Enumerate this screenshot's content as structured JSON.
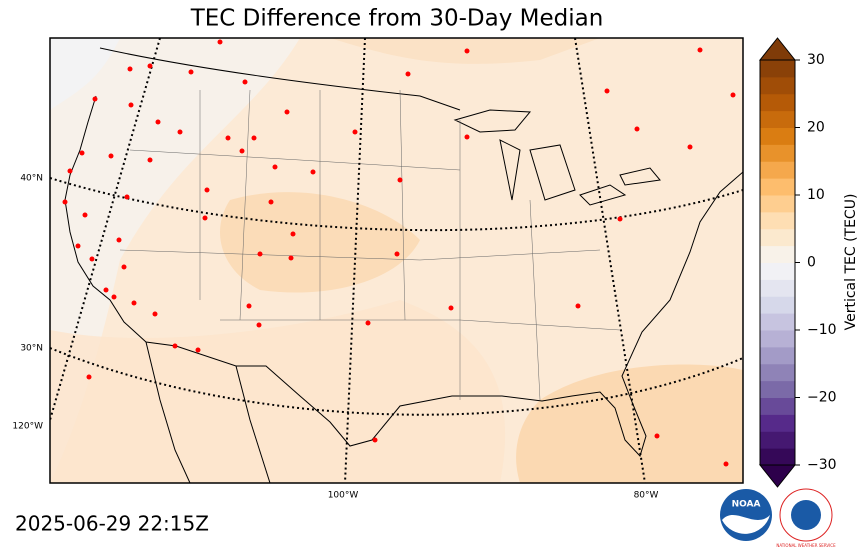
{
  "chart_data": {
    "type": "map",
    "title": "TEC Difference from 30-Day Median",
    "timestamp": "2025-06-29 22:15Z",
    "lat_labels": [
      "40°N",
      "30°N"
    ],
    "lon_labels": [
      "120°W",
      "100°W",
      "80°W"
    ],
    "colorbar": {
      "label": "Vertical TEC (TECU)",
      "clim": [
        -30,
        30
      ],
      "ticks": [
        {
          "value": -30,
          "label": "−30"
        },
        {
          "value": -20,
          "label": "−20"
        },
        {
          "value": -10,
          "label": "−10"
        },
        0,
        10,
        20,
        30
      ],
      "levels": 24,
      "cmap": [
        "#2d004b",
        "#542788",
        "#8073ac",
        "#b2abd2",
        "#d8daeb",
        "#f7f7f7",
        "#fee0b6",
        "#fdb863",
        "#e08214",
        "#b35806",
        "#7f3b08"
      ]
    },
    "logos": [
      "NOAA",
      "NATIONAL WEATHER SERVICE"
    ]
  }
}
